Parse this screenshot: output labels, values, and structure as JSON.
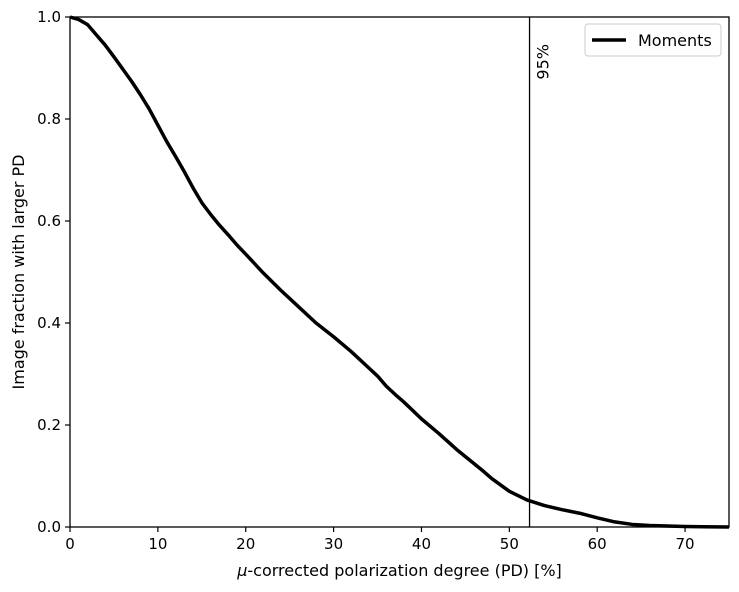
{
  "chart_data": {
    "type": "line",
    "xlabel_prefix": "μ",
    "xlabel_rest": "-corrected polarization degree (PD) [%]",
    "ylabel": "Image fraction with larger PD",
    "xlim": [
      0,
      75
    ],
    "ylim": [
      0,
      1.0
    ],
    "xticks": [
      0,
      10,
      20,
      30,
      40,
      50,
      60,
      70
    ],
    "yticks": [
      0.0,
      0.2,
      0.4,
      0.6,
      0.8,
      1.0
    ],
    "xtick_labels": [
      "0",
      "10",
      "20",
      "30",
      "40",
      "50",
      "60",
      "70"
    ],
    "ytick_labels": [
      "0.0",
      "0.2",
      "0.4",
      "0.6",
      "0.8",
      "1.0"
    ],
    "grid": false,
    "legend_position": "top-right",
    "series": [
      {
        "name": "Moments",
        "color": "#000000",
        "x": [
          0,
          1,
          2,
          3,
          4,
          5,
          6,
          7,
          8,
          9,
          10,
          11,
          12,
          13,
          14,
          15,
          16,
          17,
          18,
          19,
          20,
          22,
          24,
          26,
          28,
          30,
          32,
          34,
          35,
          36,
          37,
          38,
          40,
          42,
          44,
          46,
          47,
          48,
          50,
          52,
          54,
          56,
          58,
          60,
          62,
          64,
          66,
          68,
          70,
          72,
          75
        ],
        "y": [
          1.0,
          0.995,
          0.985,
          0.965,
          0.945,
          0.922,
          0.898,
          0.874,
          0.848,
          0.82,
          0.788,
          0.756,
          0.727,
          0.697,
          0.665,
          0.636,
          0.613,
          0.592,
          0.573,
          0.553,
          0.535,
          0.498,
          0.464,
          0.432,
          0.4,
          0.373,
          0.344,
          0.312,
          0.296,
          0.276,
          0.26,
          0.245,
          0.212,
          0.183,
          0.152,
          0.124,
          0.11,
          0.095,
          0.07,
          0.053,
          0.042,
          0.034,
          0.027,
          0.018,
          0.01,
          0.005,
          0.003,
          0.002,
          0.001,
          0.0005,
          0.0
        ]
      }
    ],
    "vline": {
      "x": 52.3,
      "label": "95%"
    }
  }
}
